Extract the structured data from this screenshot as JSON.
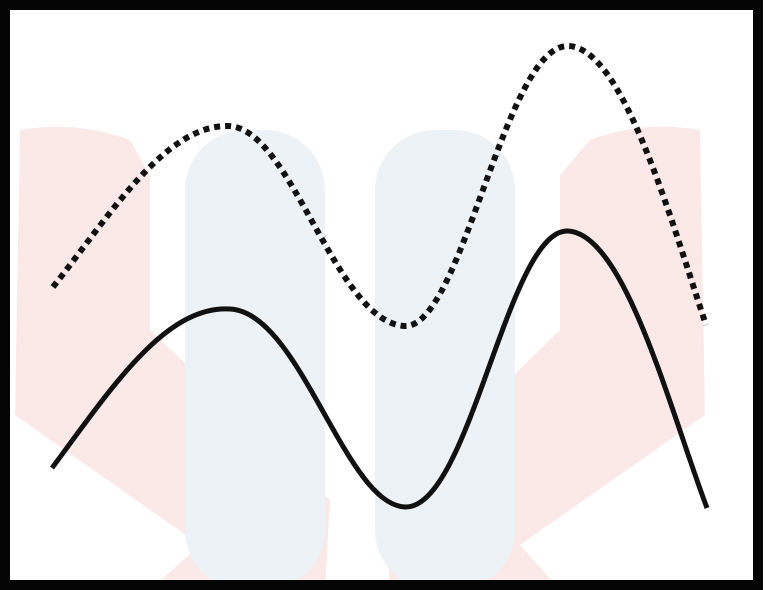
{
  "diagram": {
    "kind": "two-curve-sketch",
    "curves": [
      {
        "id": "upper",
        "style": "dotted",
        "color": "#111111",
        "shape": "wave with two peaks"
      },
      {
        "id": "lower",
        "style": "solid",
        "color": "#111111",
        "shape": "wave with two peaks"
      }
    ],
    "frame_color": "#050505",
    "background_color": "#ffffff",
    "watermark_colors": {
      "red": "#fbe9e8",
      "blue": "#edf2f6"
    }
  }
}
